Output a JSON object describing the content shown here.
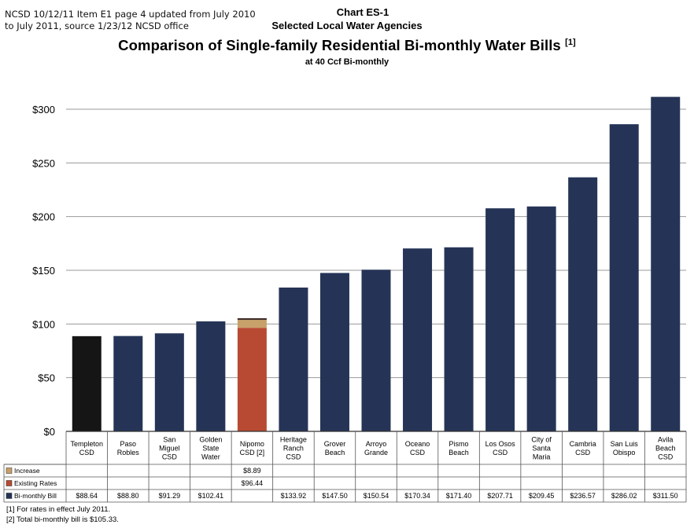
{
  "header_note": "NCSD 10/12/11 Item E1 page 4 updated from July 2010 to July 2011, source 1/23/12 NCSD office",
  "chart_data": {
    "type": "bar",
    "chart_id": "Chart ES-1",
    "subtitle": "Selected Local Water Agencies",
    "title": "Comparison of Single-family Residential Bi-monthly Water Bills",
    "title_ref": "[1]",
    "subtitle2": "at 40 Ccf Bi-monthly",
    "ylim": [
      0,
      300
    ],
    "yticks": [
      0,
      50,
      100,
      150,
      200,
      250,
      300
    ],
    "ytick_labels": [
      "$0",
      "$50",
      "$100",
      "$150",
      "$200",
      "$250",
      "$300"
    ],
    "grid": true,
    "categories": [
      [
        "Templeton",
        "CSD"
      ],
      [
        "Paso",
        "Robles"
      ],
      [
        "San",
        "Miguel",
        "CSD"
      ],
      [
        "Golden",
        "State",
        "Water"
      ],
      [
        "Nipomo",
        "CSD [2]"
      ],
      [
        "Heritage",
        "Ranch",
        "CSD"
      ],
      [
        "Grover",
        "Beach"
      ],
      [
        "Arroyo",
        "Grande"
      ],
      [
        "Oceano",
        "CSD"
      ],
      [
        "Pismo",
        "Beach"
      ],
      [
        "Los Osos",
        "CSD"
      ],
      [
        "City of",
        "Santa",
        "Maria"
      ],
      [
        "Cambria",
        "CSD"
      ],
      [
        "San Luis",
        "Obispo"
      ],
      [
        "Avila",
        "Beach",
        "CSD"
      ]
    ],
    "values": [
      88.64,
      88.8,
      91.29,
      102.41,
      105.33,
      133.92,
      147.5,
      150.54,
      170.34,
      171.4,
      207.71,
      209.45,
      236.57,
      286.02,
      311.5
    ],
    "highlight": {
      "index": 0,
      "color": "#151515"
    },
    "stacked": {
      "index": 4,
      "existing": 96.44,
      "increase": 8.89,
      "existing_color": "#b84a33",
      "increase_color": "#c8a06a"
    },
    "bar_color": "#253456",
    "table": {
      "rows": [
        {
          "label": "Increase",
          "swatch": "#c8a06a",
          "cells": [
            "",
            "",
            "",
            "",
            "$8.89",
            "",
            "",
            "",
            "",
            "",
            "",
            "",
            "",
            "",
            ""
          ]
        },
        {
          "label": "Existing Rates",
          "swatch": "#b84a33",
          "cells": [
            "",
            "",
            "",
            "",
            "$96.44",
            "",
            "",
            "",
            "",
            "",
            "",
            "",
            "",
            "",
            ""
          ]
        },
        {
          "label": "Bi-monthly Bill",
          "swatch": "#253456",
          "cells": [
            "$88.64",
            "$88.80",
            "$91.29",
            "$102.41",
            "",
            "$133.92",
            "$147.50",
            "$150.54",
            "$170.34",
            "$171.40",
            "$207.71",
            "$209.45",
            "$236.57",
            "$286.02",
            "$311.50"
          ]
        }
      ]
    },
    "footnotes": [
      "[1]  For rates in effect July 2011.",
      "[2]  Total bi-monthly bill is $105.33."
    ]
  }
}
